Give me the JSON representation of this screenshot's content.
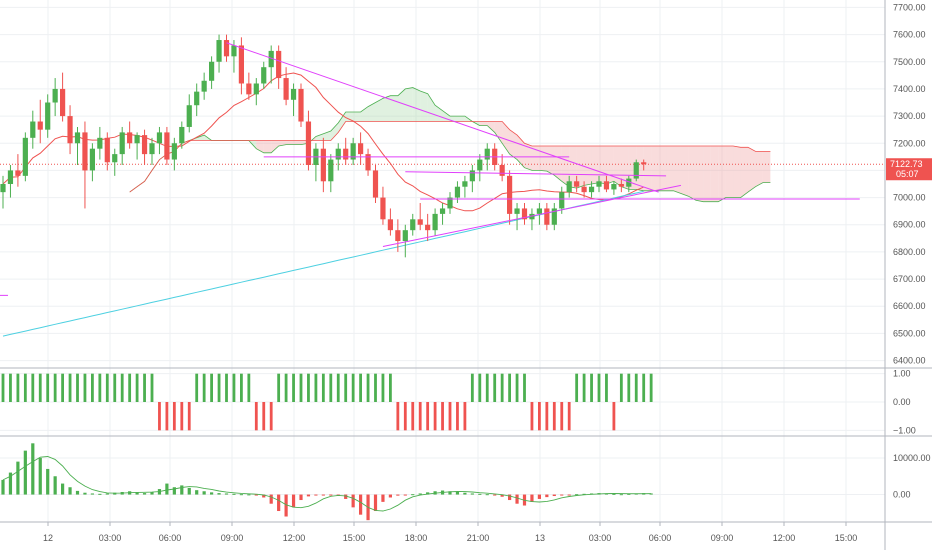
{
  "chart_data": [
    {
      "type": "candlestick",
      "name": "",
      "ylim": [
        6380,
        7720
      ],
      "yticks": [
        "6400.00",
        "6500.00",
        "6600.00",
        "6700.00",
        "6800.00",
        "6900.00",
        "7000.00",
        "7100.00",
        "7200.00",
        "7300.00",
        "7400.00",
        "7500.00",
        "7600.00",
        "7700.00"
      ],
      "last_price": "7122.73",
      "countdown": "05:07",
      "colors": {
        "up": "#4caf50",
        "down": "#ef5350",
        "cloud_up": "#a5d6a7",
        "cloud_down": "#ef9a9a",
        "trend": "#e040fb",
        "ma_slow": "#4dd0e1",
        "ma_fast": "#ef5350",
        "price_line": "#ef5350"
      },
      "ohlc": [
        [
          7020,
          7080,
          6960,
          7050
        ],
        [
          7050,
          7120,
          7000,
          7100
        ],
        [
          7100,
          7160,
          7040,
          7080
        ],
        [
          7080,
          7240,
          7060,
          7220
        ],
        [
          7220,
          7320,
          7180,
          7280
        ],
        [
          7280,
          7360,
          7200,
          7250
        ],
        [
          7250,
          7380,
          7220,
          7350
        ],
        [
          7350,
          7440,
          7300,
          7400
        ],
        [
          7400,
          7460,
          7280,
          7300
        ],
        [
          7300,
          7340,
          7160,
          7200
        ],
        [
          7200,
          7260,
          7120,
          7240
        ],
        [
          7240,
          7280,
          6960,
          7100
        ],
        [
          7100,
          7200,
          7060,
          7180
        ],
        [
          7180,
          7260,
          7140,
          7220
        ],
        [
          7220,
          7240,
          7100,
          7130
        ],
        [
          7130,
          7180,
          7080,
          7160
        ],
        [
          7160,
          7260,
          7120,
          7240
        ],
        [
          7240,
          7280,
          7180,
          7200
        ],
        [
          7200,
          7240,
          7140,
          7230
        ],
        [
          7230,
          7250,
          7120,
          7160
        ],
        [
          7160,
          7220,
          7120,
          7200
        ],
        [
          7200,
          7260,
          7160,
          7240
        ],
        [
          7240,
          7260,
          7120,
          7140
        ],
        [
          7140,
          7220,
          7100,
          7200
        ],
        [
          7200,
          7280,
          7180,
          7260
        ],
        [
          7260,
          7380,
          7240,
          7340
        ],
        [
          7340,
          7420,
          7300,
          7390
        ],
        [
          7390,
          7460,
          7360,
          7430
        ],
        [
          7430,
          7520,
          7400,
          7500
        ],
        [
          7500,
          7600,
          7460,
          7580
        ],
        [
          7580,
          7600,
          7500,
          7520
        ],
        [
          7520,
          7580,
          7460,
          7560
        ],
        [
          7560,
          7590,
          7380,
          7420
        ],
        [
          7420,
          7460,
          7360,
          7380
        ],
        [
          7380,
          7440,
          7340,
          7420
        ],
        [
          7420,
          7500,
          7400,
          7480
        ],
        [
          7480,
          7560,
          7420,
          7540
        ],
        [
          7540,
          7560,
          7400,
          7440
        ],
        [
          7440,
          7480,
          7340,
          7360
        ],
        [
          7360,
          7420,
          7300,
          7400
        ],
        [
          7400,
          7420,
          7260,
          7280
        ],
        [
          7280,
          7320,
          7100,
          7120
        ],
        [
          7120,
          7200,
          7060,
          7180
        ],
        [
          7180,
          7220,
          7020,
          7060
        ],
        [
          7060,
          7160,
          7020,
          7140
        ],
        [
          7140,
          7200,
          7100,
          7180
        ],
        [
          7180,
          7220,
          7120,
          7140
        ],
        [
          7140,
          7220,
          7120,
          7200
        ],
        [
          7200,
          7240,
          7120,
          7160
        ],
        [
          7160,
          7180,
          7080,
          7100
        ],
        [
          7100,
          7120,
          6980,
          7000
        ],
        [
          7000,
          7040,
          6900,
          6920
        ],
        [
          6920,
          6960,
          6860,
          6880
        ],
        [
          6880,
          6920,
          6800,
          6840
        ],
        [
          6840,
          6900,
          6780,
          6880
        ],
        [
          6880,
          6940,
          6860,
          6920
        ],
        [
          6920,
          6980,
          6880,
          6900
        ],
        [
          6900,
          6940,
          6840,
          6880
        ],
        [
          6880,
          6960,
          6860,
          6940
        ],
        [
          6940,
          6980,
          6900,
          6960
        ],
        [
          6960,
          7020,
          6940,
          7000
        ],
        [
          7000,
          7060,
          6980,
          7040
        ],
        [
          7040,
          7080,
          7000,
          7060
        ],
        [
          7060,
          7120,
          7020,
          7100
        ],
        [
          7100,
          7160,
          7060,
          7140
        ],
        [
          7140,
          7200,
          7100,
          7180
        ],
        [
          7180,
          7200,
          7100,
          7120
        ],
        [
          7120,
          7160,
          7060,
          7080
        ],
        [
          7080,
          7100,
          6900,
          6940
        ],
        [
          6940,
          6980,
          6880,
          6960
        ],
        [
          6960,
          6980,
          6900,
          6920
        ],
        [
          6920,
          6960,
          6880,
          6940
        ],
        [
          6940,
          6980,
          6900,
          6960
        ],
        [
          6960,
          6980,
          6880,
          6900
        ],
        [
          6900,
          6980,
          6880,
          6960
        ],
        [
          6960,
          7040,
          6940,
          7020
        ],
        [
          7020,
          7080,
          7000,
          7060
        ],
        [
          7060,
          7080,
          7020,
          7040
        ],
        [
          7040,
          7060,
          7000,
          7020
        ],
        [
          7020,
          7060,
          7000,
          7040
        ],
        [
          7040,
          7080,
          7020,
          7060
        ],
        [
          7060,
          7080,
          7020,
          7030
        ],
        [
          7030,
          7060,
          7010,
          7050
        ],
        [
          7050,
          7070,
          7020,
          7040
        ],
        [
          7040,
          7080,
          7020,
          7070
        ],
        [
          7070,
          7140,
          7060,
          7130
        ],
        [
          7130,
          7140,
          7100,
          7122.73
        ]
      ]
    },
    {
      "type": "bar",
      "name": "",
      "ylim": [
        -1.2,
        1.2
      ],
      "yticks": [
        "1.00",
        "0.00",
        "−1.00"
      ],
      "values": [
        1,
        1,
        1,
        1,
        1,
        1,
        1,
        1,
        1,
        1,
        1,
        1,
        1,
        1,
        1,
        1,
        1,
        1,
        1,
        1,
        1,
        -1,
        -1,
        -1,
        -1,
        -1,
        1,
        1,
        1,
        1,
        1,
        1,
        1,
        1,
        -1,
        -1,
        -1,
        1,
        1,
        1,
        1,
        1,
        1,
        1,
        1,
        1,
        1,
        1,
        1,
        1,
        1,
        1,
        1,
        -1,
        -1,
        -1,
        -1,
        -1,
        -1,
        -1,
        -1,
        -1,
        -1,
        1,
        1,
        1,
        1,
        1,
        1,
        1,
        1,
        -1,
        -1,
        -1,
        -1,
        -1,
        -1,
        1,
        1,
        1,
        1,
        1,
        -1,
        1,
        1,
        1,
        1,
        1
      ]
    },
    {
      "type": "bar",
      "name": "",
      "ylim": [
        -7500,
        16000
      ],
      "yticks": [
        "10000.00",
        "0.00"
      ],
      "values": [
        4000,
        6000,
        9000,
        12000,
        14000,
        10000,
        7000,
        5000,
        3000,
        2000,
        1000,
        500,
        300,
        200,
        300,
        500,
        700,
        900,
        600,
        400,
        700,
        1500,
        3000,
        2000,
        2500,
        1800,
        1200,
        900,
        600,
        400,
        300,
        200,
        100,
        50,
        -200,
        -800,
        -2500,
        -4500,
        -6000,
        -3500,
        -1500,
        -500,
        -200,
        -100,
        -50,
        -300,
        -1200,
        -3500,
        -5500,
        -7000,
        -4500,
        -2000,
        -800,
        -300,
        -100,
        100,
        300,
        600,
        900,
        1100,
        900,
        700,
        500,
        300,
        200,
        100,
        -200,
        -600,
        -1500,
        -2500,
        -3000,
        -2000,
        -1200,
        -700,
        -400,
        -200,
        -100,
        100,
        200,
        300,
        400,
        300,
        200,
        100,
        200,
        300,
        400,
        300
      ]
    },
    {
      "type": "time_axis",
      "x_tick_labels": [
        "12",
        "03:00",
        "06:00",
        "09:00",
        "12:00",
        "15:00",
        "18:00",
        "21:00",
        "13",
        "03:00",
        "06:00",
        "09:00",
        "12:00",
        "15:00"
      ]
    }
  ]
}
